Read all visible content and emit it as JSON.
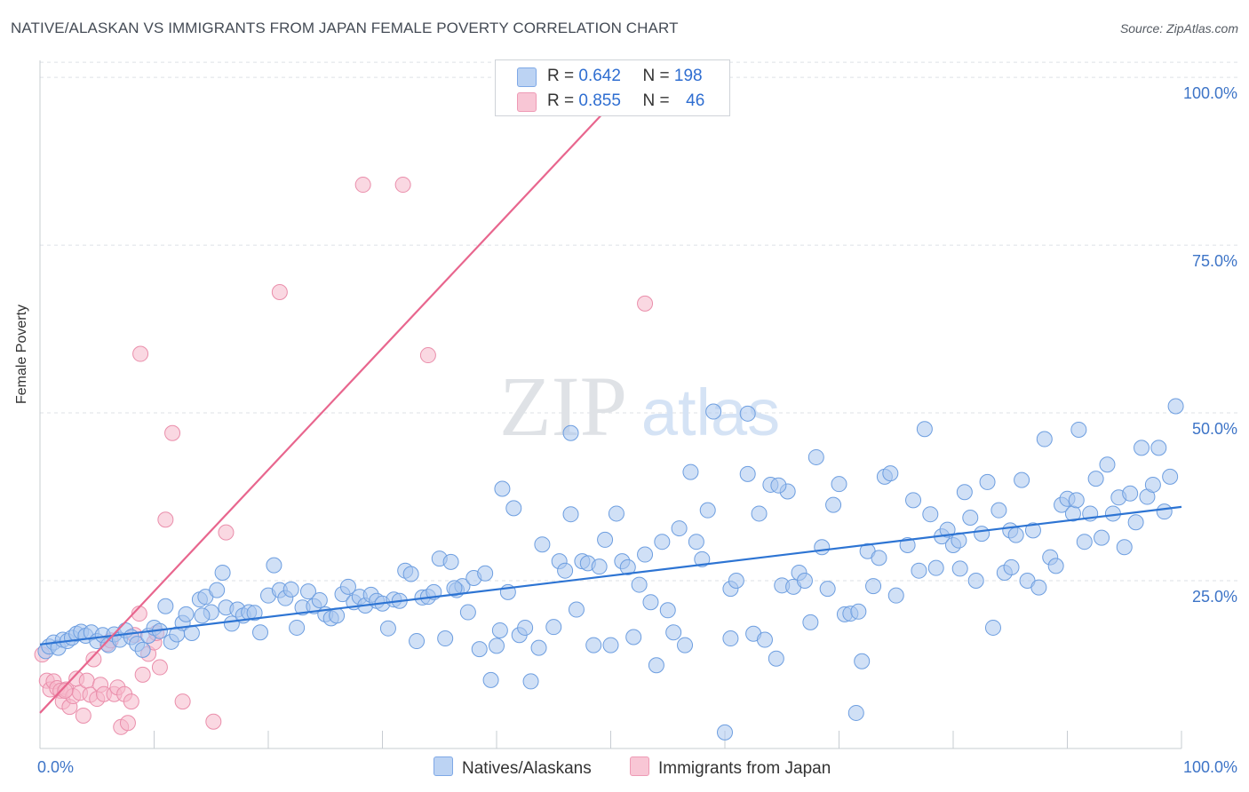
{
  "header": {
    "title": "NATIVE/ALASKAN VS IMMIGRANTS FROM JAPAN FEMALE POVERTY CORRELATION CHART",
    "source": "Source: ZipAtlas.com"
  },
  "watermark": {
    "zip": "ZIP",
    "atlas": "atlas"
  },
  "legend_top": {
    "rows": [
      {
        "r_label": "R =",
        "r_value": "0.642",
        "n_label": "N =",
        "n_value": "198"
      },
      {
        "r_label": "R =",
        "r_value": "0.855",
        "n_label": "N =",
        "n_value": "46"
      }
    ]
  },
  "legend_bottom": {
    "series1": "Natives/Alaskans",
    "series2": "Immigrants from Japan"
  },
  "colors": {
    "blue_fill": "#a9c6ef",
    "blue_stroke": "#6d9ee0",
    "blue_line": "#2d74d3",
    "pink_fill": "#f6b8cb",
    "pink_stroke": "#ea8eab",
    "pink_line": "#e8668e",
    "tick_text": "#3d74c7",
    "grid": "#dde1e6"
  },
  "chart_data": {
    "type": "scatter",
    "title": "NATIVE/ALASKAN VS IMMIGRANTS FROM JAPAN FEMALE POVERTY CORRELATION CHART",
    "xlabel": "",
    "ylabel": "Female Poverty",
    "xlim": [
      0,
      100
    ],
    "ylim": [
      0,
      102
    ],
    "x_tick_labels": [
      "0.0%",
      "100.0%"
    ],
    "y_ticks": [
      25,
      50,
      75,
      100
    ],
    "y_tick_labels": [
      "25.0%",
      "50.0%",
      "75.0%",
      "100.0%"
    ],
    "legend_position": "top-center",
    "grid": true,
    "series": [
      {
        "name": "Natives/Alaskans",
        "r": 0.642,
        "n": 198,
        "trendline": {
          "x": [
            0,
            100
          ],
          "y": [
            15.5,
            36.0
          ]
        },
        "points": [
          [
            0.5,
            14.5
          ],
          [
            0.8,
            15.2
          ],
          [
            1.2,
            15.8
          ],
          [
            1.6,
            15.0
          ],
          [
            2.0,
            16.2
          ],
          [
            2.4,
            16.0
          ],
          [
            2.8,
            16.5
          ],
          [
            3.2,
            17.1
          ],
          [
            3.6,
            17.4
          ],
          [
            4.0,
            16.8
          ],
          [
            4.5,
            17.3
          ],
          [
            5.0,
            16.0
          ],
          [
            5.5,
            16.9
          ],
          [
            6.0,
            15.4
          ],
          [
            6.5,
            17.0
          ],
          [
            7.0,
            16.2
          ],
          [
            7.5,
            17.6
          ],
          [
            8.0,
            16.6
          ],
          [
            8.5,
            15.6
          ],
          [
            9.0,
            14.7
          ],
          [
            9.5,
            16.8
          ],
          [
            10.0,
            18.0
          ],
          [
            10.5,
            17.5
          ],
          [
            11.0,
            21.2
          ],
          [
            11.5,
            15.9
          ],
          [
            12.0,
            17.0
          ],
          [
            12.5,
            18.7
          ],
          [
            12.8,
            20.0
          ],
          [
            13.3,
            17.2
          ],
          [
            14.0,
            22.2
          ],
          [
            14.5,
            22.6
          ],
          [
            15.0,
            20.3
          ],
          [
            15.5,
            23.6
          ],
          [
            16.0,
            26.2
          ],
          [
            16.3,
            21.0
          ],
          [
            16.8,
            18.6
          ],
          [
            17.3,
            20.7
          ],
          [
            17.8,
            19.8
          ],
          [
            18.3,
            20.3
          ],
          [
            18.8,
            20.2
          ],
          [
            19.3,
            17.3
          ],
          [
            20.0,
            22.8
          ],
          [
            20.5,
            27.3
          ],
          [
            21.0,
            23.6
          ],
          [
            21.5,
            22.4
          ],
          [
            22.0,
            23.7
          ],
          [
            22.5,
            18.0
          ],
          [
            23.0,
            21.0
          ],
          [
            23.5,
            23.4
          ],
          [
            24.0,
            21.2
          ],
          [
            24.5,
            22.1
          ],
          [
            25.0,
            20.0
          ],
          [
            25.5,
            19.4
          ],
          [
            26.0,
            19.8
          ],
          [
            26.5,
            23.0
          ],
          [
            27.0,
            24.1
          ],
          [
            27.5,
            21.8
          ],
          [
            28.0,
            22.6
          ],
          [
            28.5,
            21.3
          ],
          [
            29.0,
            22.9
          ],
          [
            29.5,
            22.0
          ],
          [
            30.0,
            21.6
          ],
          [
            30.5,
            17.9
          ],
          [
            31.0,
            22.2
          ],
          [
            31.5,
            22.0
          ],
          [
            32.0,
            26.5
          ],
          [
            32.5,
            26.0
          ],
          [
            33.0,
            16.0
          ],
          [
            33.5,
            22.5
          ],
          [
            34.0,
            22.6
          ],
          [
            34.5,
            23.3
          ],
          [
            35.0,
            28.3
          ],
          [
            35.5,
            16.4
          ],
          [
            36.0,
            27.8
          ],
          [
            36.5,
            23.6
          ],
          [
            37.0,
            24.2
          ],
          [
            37.5,
            20.3
          ],
          [
            38.0,
            25.4
          ],
          [
            38.5,
            14.8
          ],
          [
            39.0,
            26.1
          ],
          [
            39.5,
            10.2
          ],
          [
            40.0,
            15.3
          ],
          [
            40.5,
            38.7
          ],
          [
            41.0,
            23.3
          ],
          [
            41.5,
            35.8
          ],
          [
            42.0,
            16.9
          ],
          [
            42.5,
            18.0
          ],
          [
            43.0,
            10.0
          ],
          [
            44.0,
            30.4
          ],
          [
            45.0,
            18.1
          ],
          [
            45.5,
            27.9
          ],
          [
            46.0,
            26.5
          ],
          [
            46.5,
            34.9
          ],
          [
            47.0,
            20.7
          ],
          [
            47.5,
            27.9
          ],
          [
            48.0,
            27.6
          ],
          [
            48.5,
            15.4
          ],
          [
            49.0,
            27.1
          ],
          [
            49.5,
            31.1
          ],
          [
            50.0,
            15.4
          ],
          [
            50.5,
            35.0
          ],
          [
            51.0,
            27.9
          ],
          [
            51.5,
            27.0
          ],
          [
            52.0,
            16.6
          ],
          [
            52.5,
            24.4
          ],
          [
            53.0,
            28.9
          ],
          [
            53.5,
            21.8
          ],
          [
            54.0,
            12.4
          ],
          [
            54.5,
            30.8
          ],
          [
            55.0,
            20.6
          ],
          [
            55.5,
            17.3
          ],
          [
            56.0,
            32.8
          ],
          [
            56.5,
            15.4
          ],
          [
            57.0,
            41.2
          ],
          [
            57.5,
            30.8
          ],
          [
            58.0,
            28.2
          ],
          [
            58.5,
            35.5
          ],
          [
            59.0,
            50.2
          ],
          [
            60.0,
            2.4
          ],
          [
            60.5,
            16.4
          ],
          [
            60.5,
            23.8
          ],
          [
            61.0,
            25.0
          ],
          [
            62.0,
            49.9
          ],
          [
            62.0,
            40.9
          ],
          [
            62.5,
            17.1
          ],
          [
            63.0,
            35.0
          ],
          [
            63.5,
            16.2
          ],
          [
            64.0,
            39.3
          ],
          [
            64.5,
            13.4
          ],
          [
            65.0,
            24.3
          ],
          [
            65.5,
            38.3
          ],
          [
            66.0,
            24.1
          ],
          [
            66.5,
            26.2
          ],
          [
            67.0,
            25.0
          ],
          [
            67.5,
            18.8
          ],
          [
            68.0,
            43.4
          ],
          [
            68.5,
            30.0
          ],
          [
            69.0,
            23.8
          ],
          [
            69.5,
            36.3
          ],
          [
            70.0,
            39.4
          ],
          [
            70.5,
            20.0
          ],
          [
            71.0,
            20.1
          ],
          [
            71.5,
            5.3
          ],
          [
            71.7,
            20.4
          ],
          [
            72.0,
            13.0
          ],
          [
            72.5,
            29.4
          ],
          [
            73.0,
            24.2
          ],
          [
            73.5,
            28.4
          ],
          [
            74.0,
            40.5
          ],
          [
            74.5,
            41.0
          ],
          [
            75.0,
            22.8
          ],
          [
            76.0,
            30.3
          ],
          [
            76.5,
            37.0
          ],
          [
            77.0,
            26.5
          ],
          [
            77.5,
            47.6
          ],
          [
            78.0,
            34.9
          ],
          [
            78.5,
            26.9
          ],
          [
            79.0,
            31.6
          ],
          [
            79.5,
            32.6
          ],
          [
            80.0,
            30.3
          ],
          [
            80.5,
            31.0
          ],
          [
            81.0,
            38.2
          ],
          [
            81.5,
            34.4
          ],
          [
            82.0,
            25.0
          ],
          [
            82.5,
            32.0
          ],
          [
            83.0,
            39.7
          ],
          [
            83.5,
            18.0
          ],
          [
            84.0,
            35.5
          ],
          [
            84.5,
            26.2
          ],
          [
            85.0,
            32.5
          ],
          [
            85.5,
            31.8
          ],
          [
            86.0,
            40.0
          ],
          [
            86.5,
            25.0
          ],
          [
            87.0,
            32.5
          ],
          [
            87.5,
            24.0
          ],
          [
            88.0,
            46.1
          ],
          [
            88.5,
            28.5
          ],
          [
            89.0,
            27.2
          ],
          [
            89.5,
            36.3
          ],
          [
            90.0,
            37.2
          ],
          [
            90.5,
            35.0
          ],
          [
            91.0,
            47.5
          ],
          [
            91.5,
            30.8
          ],
          [
            92.0,
            35.0
          ],
          [
            92.5,
            40.2
          ],
          [
            93.0,
            31.4
          ],
          [
            93.5,
            42.3
          ],
          [
            94.0,
            35.0
          ],
          [
            94.5,
            37.4
          ],
          [
            95.0,
            30.0
          ],
          [
            95.5,
            38.0
          ],
          [
            96.0,
            33.7
          ],
          [
            96.5,
            44.8
          ],
          [
            97.0,
            37.5
          ],
          [
            97.5,
            39.3
          ],
          [
            98.0,
            44.8
          ],
          [
            98.5,
            35.3
          ],
          [
            99.0,
            40.5
          ],
          [
            99.5,
            51.0
          ],
          [
            46.5,
            47.0
          ],
          [
            14.2,
            19.8
          ],
          [
            36.3,
            23.9
          ],
          [
            80.6,
            26.8
          ],
          [
            90.8,
            37.0
          ],
          [
            85.1,
            27.0
          ],
          [
            64.7,
            39.2
          ],
          [
            43.7,
            15.0
          ],
          [
            40.3,
            17.6
          ]
        ]
      },
      {
        "name": "Immigrants from Japan",
        "r": 0.855,
        "n": 46,
        "trendline": {
          "x": [
            0,
            52
          ],
          "y": [
            5.3,
            99.5
          ]
        },
        "points": [
          [
            0.2,
            14.0
          ],
          [
            0.6,
            10.1
          ],
          [
            0.9,
            8.8
          ],
          [
            1.2,
            10.0
          ],
          [
            1.5,
            9.0
          ],
          [
            1.8,
            8.6
          ],
          [
            2.0,
            7.0
          ],
          [
            2.3,
            8.8
          ],
          [
            2.6,
            6.2
          ],
          [
            2.9,
            7.8
          ],
          [
            3.2,
            10.4
          ],
          [
            3.5,
            8.3
          ],
          [
            3.8,
            4.9
          ],
          [
            4.1,
            10.1
          ],
          [
            4.4,
            8.0
          ],
          [
            4.7,
            13.3
          ],
          [
            5.0,
            7.4
          ],
          [
            5.3,
            9.5
          ],
          [
            5.6,
            8.1
          ],
          [
            5.9,
            15.6
          ],
          [
            6.2,
            16.1
          ],
          [
            6.5,
            8.1
          ],
          [
            6.8,
            9.1
          ],
          [
            7.1,
            3.2
          ],
          [
            7.4,
            8.1
          ],
          [
            7.7,
            3.8
          ],
          [
            8.0,
            7.0
          ],
          [
            8.3,
            16.9
          ],
          [
            8.7,
            20.1
          ],
          [
            9.0,
            11.0
          ],
          [
            9.5,
            14.1
          ],
          [
            10.0,
            15.8
          ],
          [
            8.8,
            58.8
          ],
          [
            10.2,
            17.2
          ],
          [
            10.5,
            12.1
          ],
          [
            11.0,
            34.1
          ],
          [
            11.6,
            47.0
          ],
          [
            12.5,
            7.0
          ],
          [
            15.2,
            4.0
          ],
          [
            16.3,
            32.2
          ],
          [
            21.0,
            68.0
          ],
          [
            28.3,
            84.0
          ],
          [
            31.8,
            84.0
          ],
          [
            34.0,
            58.6
          ],
          [
            53.0,
            66.3
          ],
          [
            2.2,
            8.6
          ]
        ]
      }
    ]
  }
}
